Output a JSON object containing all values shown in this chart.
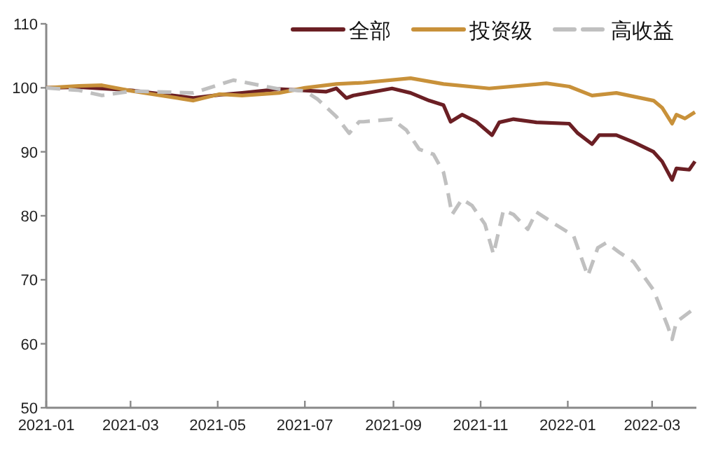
{
  "chart_data": {
    "type": "line",
    "legend": "top",
    "line_style": "solid",
    "grid": false,
    "xlim": [
      "2021-01-01",
      "2022-04-01"
    ],
    "xticks": [
      {
        "value": "2021-01-01",
        "label": "2021-01"
      },
      {
        "value": "2021-03-01",
        "label": "2021-03"
      },
      {
        "value": "2021-05-01",
        "label": "2021-05"
      },
      {
        "value": "2021-07-01",
        "label": "2021-07"
      },
      {
        "value": "2021-09-01",
        "label": "2021-09"
      },
      {
        "value": "2021-11-01",
        "label": "2021-11"
      },
      {
        "value": "2022-01-01",
        "label": "2022-01"
      },
      {
        "value": "2022-03-01",
        "label": "2022-03"
      }
    ],
    "ylim": [
      50,
      110
    ],
    "yticks": [
      50,
      60,
      70,
      80,
      90,
      100,
      110
    ],
    "series": [
      {
        "name": "全部",
        "color": "#6b1f24",
        "x": [
          "2021-01-01",
          "2021-01-24",
          "2021-03-02",
          "2021-04-14",
          "2021-05-02",
          "2021-05-18",
          "2021-06-13",
          "2021-07-16",
          "2021-07-23",
          "2021-07-30",
          "2021-08-04",
          "2021-08-31",
          "2021-09-13",
          "2021-09-26",
          "2021-10-06",
          "2021-10-11",
          "2021-10-19",
          "2021-10-29",
          "2021-11-09",
          "2021-11-14",
          "2021-11-24",
          "2021-12-10",
          "2022-01-02",
          "2022-01-08",
          "2022-01-18",
          "2022-01-23",
          "2022-02-04",
          "2022-02-16",
          "2022-03-02",
          "2022-03-08",
          "2022-03-15",
          "2022-03-18",
          "2022-03-27",
          "2022-03-31"
        ],
        "values": [
          100,
          100.1,
          99.6,
          98.4,
          98.9,
          99.2,
          99.8,
          99.4,
          99.9,
          98.4,
          98.8,
          99.9,
          99.2,
          98.0,
          97.3,
          94.7,
          95.8,
          94.7,
          92.6,
          94.6,
          95.1,
          94.6,
          94.4,
          92.9,
          91.2,
          92.6,
          92.6,
          91.5,
          90.0,
          88.5,
          85.6,
          87.4,
          87.2,
          88.5
        ]
      },
      {
        "name": "投资级",
        "color": "#c8913a",
        "x": [
          "2021-01-01",
          "2021-01-24",
          "2021-02-09",
          "2021-03-02",
          "2021-04-14",
          "2021-05-02",
          "2021-05-18",
          "2021-06-13",
          "2021-07-01",
          "2021-07-23",
          "2021-08-11",
          "2021-09-13",
          "2021-10-06",
          "2021-11-07",
          "2021-12-17",
          "2022-01-02",
          "2022-01-18",
          "2022-02-04",
          "2022-03-02",
          "2022-03-08",
          "2022-03-15",
          "2022-03-18",
          "2022-03-24",
          "2022-03-31"
        ],
        "values": [
          100,
          100.3,
          100.4,
          99.5,
          98.0,
          99.0,
          98.8,
          99.2,
          100,
          100.6,
          100.8,
          101.5,
          100.6,
          99.9,
          100.7,
          100.2,
          98.8,
          99.2,
          98.0,
          96.9,
          94.4,
          95.8,
          95.2,
          96.2
        ]
      },
      {
        "name": "高收益",
        "color": "#c0c0c0",
        "line_style": "dashed",
        "x": [
          "2021-01-01",
          "2021-01-24",
          "2021-02-09",
          "2021-03-02",
          "2021-04-14",
          "2021-05-12",
          "2021-06-13",
          "2021-07-01",
          "2021-07-10",
          "2021-07-23",
          "2021-08-01",
          "2021-08-08",
          "2021-08-11",
          "2021-08-31",
          "2021-09-10",
          "2021-09-19",
          "2021-09-29",
          "2021-10-06",
          "2021-10-09",
          "2021-10-12",
          "2021-10-19",
          "2021-10-26",
          "2021-11-04",
          "2021-11-10",
          "2021-11-17",
          "2021-11-24",
          "2021-12-04",
          "2021-12-10",
          "2021-12-23",
          "2022-01-05",
          "2022-01-15",
          "2022-01-22",
          "2022-01-28",
          "2022-02-06",
          "2022-02-16",
          "2022-03-02",
          "2022-03-12",
          "2022-03-15",
          "2022-03-18",
          "2022-03-31"
        ],
        "values": [
          100,
          99.6,
          98.8,
          99.5,
          99.2,
          101.2,
          99.8,
          99.5,
          98.2,
          95.5,
          92.9,
          94.7,
          94.7,
          95.1,
          93.4,
          90.4,
          89.6,
          86.8,
          83.8,
          80.2,
          82.6,
          81.6,
          78.7,
          74.0,
          80.9,
          80.2,
          77.9,
          80.6,
          78.7,
          76.9,
          70.6,
          75.0,
          75.8,
          74.3,
          72.8,
          68.4,
          62.7,
          60.7,
          63.4,
          65.6
        ]
      }
    ]
  }
}
